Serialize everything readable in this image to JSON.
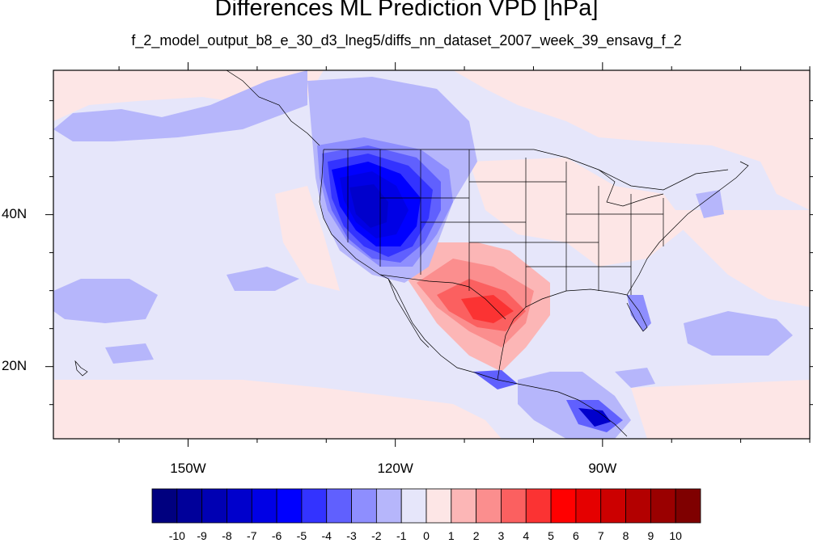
{
  "title": "Differences ML Prediction VPD [hPa]",
  "subtitle": "f_2_model_output_b8_e_30_d3_lneg5/diffs_nn_dataset_2007_week_39_ensavg_f_2",
  "map": {
    "projection": "cylindrical-equidistant",
    "lon_range": [
      -169.5,
      -60
    ],
    "lat_range": [
      10.5,
      59
    ],
    "lon_ticks": [
      {
        "value": -150,
        "label": "150W"
      },
      {
        "value": -120,
        "label": "120W"
      },
      {
        "value": -90,
        "label": "90W"
      }
    ],
    "lat_ticks": [
      {
        "value": 40,
        "label": "40N"
      },
      {
        "value": 20,
        "label": "20N"
      }
    ],
    "background_color": "#e6e6fa",
    "features": [
      "coastlines",
      "us-state-boundaries",
      "national-boundaries"
    ]
  },
  "colorbar": {
    "labels": [
      "-10",
      "-9",
      "-8",
      "-7",
      "-6",
      "-5",
      "-4",
      "-3",
      "-2",
      "-1",
      "0",
      "1",
      "2",
      "3",
      "4",
      "5",
      "6",
      "7",
      "8",
      "9",
      "10"
    ],
    "colors": [
      "#00007f",
      "#00009a",
      "#0000b3",
      "#0000cc",
      "#0000e5",
      "#0000ff",
      "#3333ff",
      "#6060fe",
      "#8e8efe",
      "#b6b6fb",
      "#e6e6fa",
      "#fde6e6",
      "#fcb6b6",
      "#fb8e8e",
      "#fb6060",
      "#fb3333",
      "#ff0000",
      "#e50000",
      "#cc0000",
      "#b30000",
      "#9a0000",
      "#7f0000"
    ]
  }
}
